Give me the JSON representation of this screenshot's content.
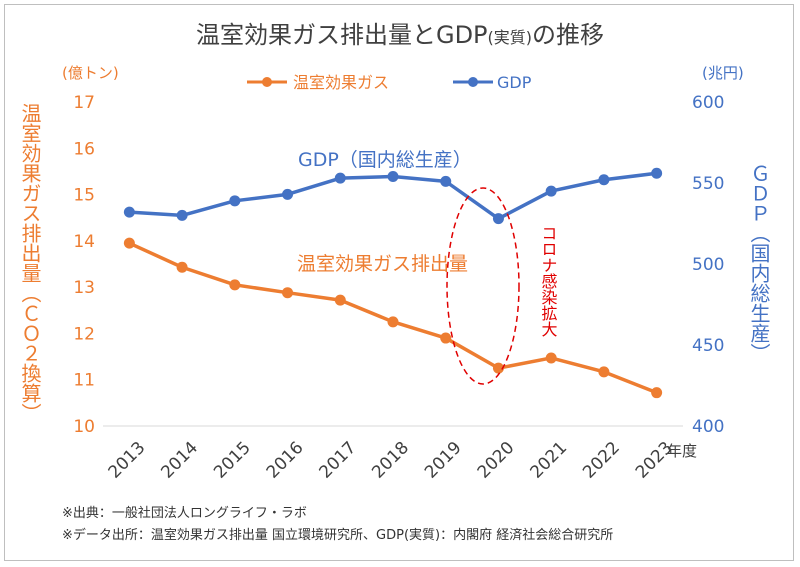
{
  "chart_data": {
    "type": "line",
    "title": "温室効果ガス排出量とGDP",
    "title_suffix": "(実質)",
    "title_tail": "の推移",
    "categories": [
      "2013",
      "2014",
      "2015",
      "2016",
      "2017",
      "2018",
      "2019",
      "2020",
      "2021",
      "2022",
      "2023"
    ],
    "x_unit": "年度",
    "y_left": {
      "label": "温室効果ガス排出量（ＣＯ２換算）",
      "unit": "(億トン)",
      "range": [
        10,
        17
      ],
      "ticks": [
        10,
        11,
        12,
        13,
        14,
        15,
        16,
        17
      ]
    },
    "y_right": {
      "label": "ＧＤＰ（国内総生産）",
      "unit": "(兆円)",
      "range": [
        400,
        600
      ],
      "ticks": [
        400,
        450,
        500,
        550,
        600
      ]
    },
    "series": [
      {
        "name": "温室効果ガス",
        "axis": "left",
        "color": "#ed7d31",
        "values": [
          13.95,
          13.43,
          13.05,
          12.88,
          12.72,
          12.25,
          11.9,
          11.25,
          11.47,
          11.17,
          10.72
        ]
      },
      {
        "name": "GDP",
        "axis": "right",
        "color": "#4472c4",
        "values": [
          532,
          530,
          539,
          543,
          553,
          554,
          551,
          528,
          545,
          552,
          556
        ]
      }
    ],
    "legend_position": "top",
    "grid": false,
    "annotations": {
      "gdp_label": "GDP（国内総生産）",
      "emission_label": "温室効果ガス排出量",
      "covid_label": "コロナ感染拡大"
    }
  },
  "colors": {
    "orange": "#ed7d31",
    "blue": "#4472c4",
    "red": "#e00000",
    "axis": "#d9d9d9"
  },
  "footnotes": {
    "source": "※出典：一般社団法人ロングライフ・ラボ",
    "data_source": "※データ出所：温室効果ガス排出量 国立環境研究所、GDP(実質)：内閣府 経済社会総合研究所"
  }
}
